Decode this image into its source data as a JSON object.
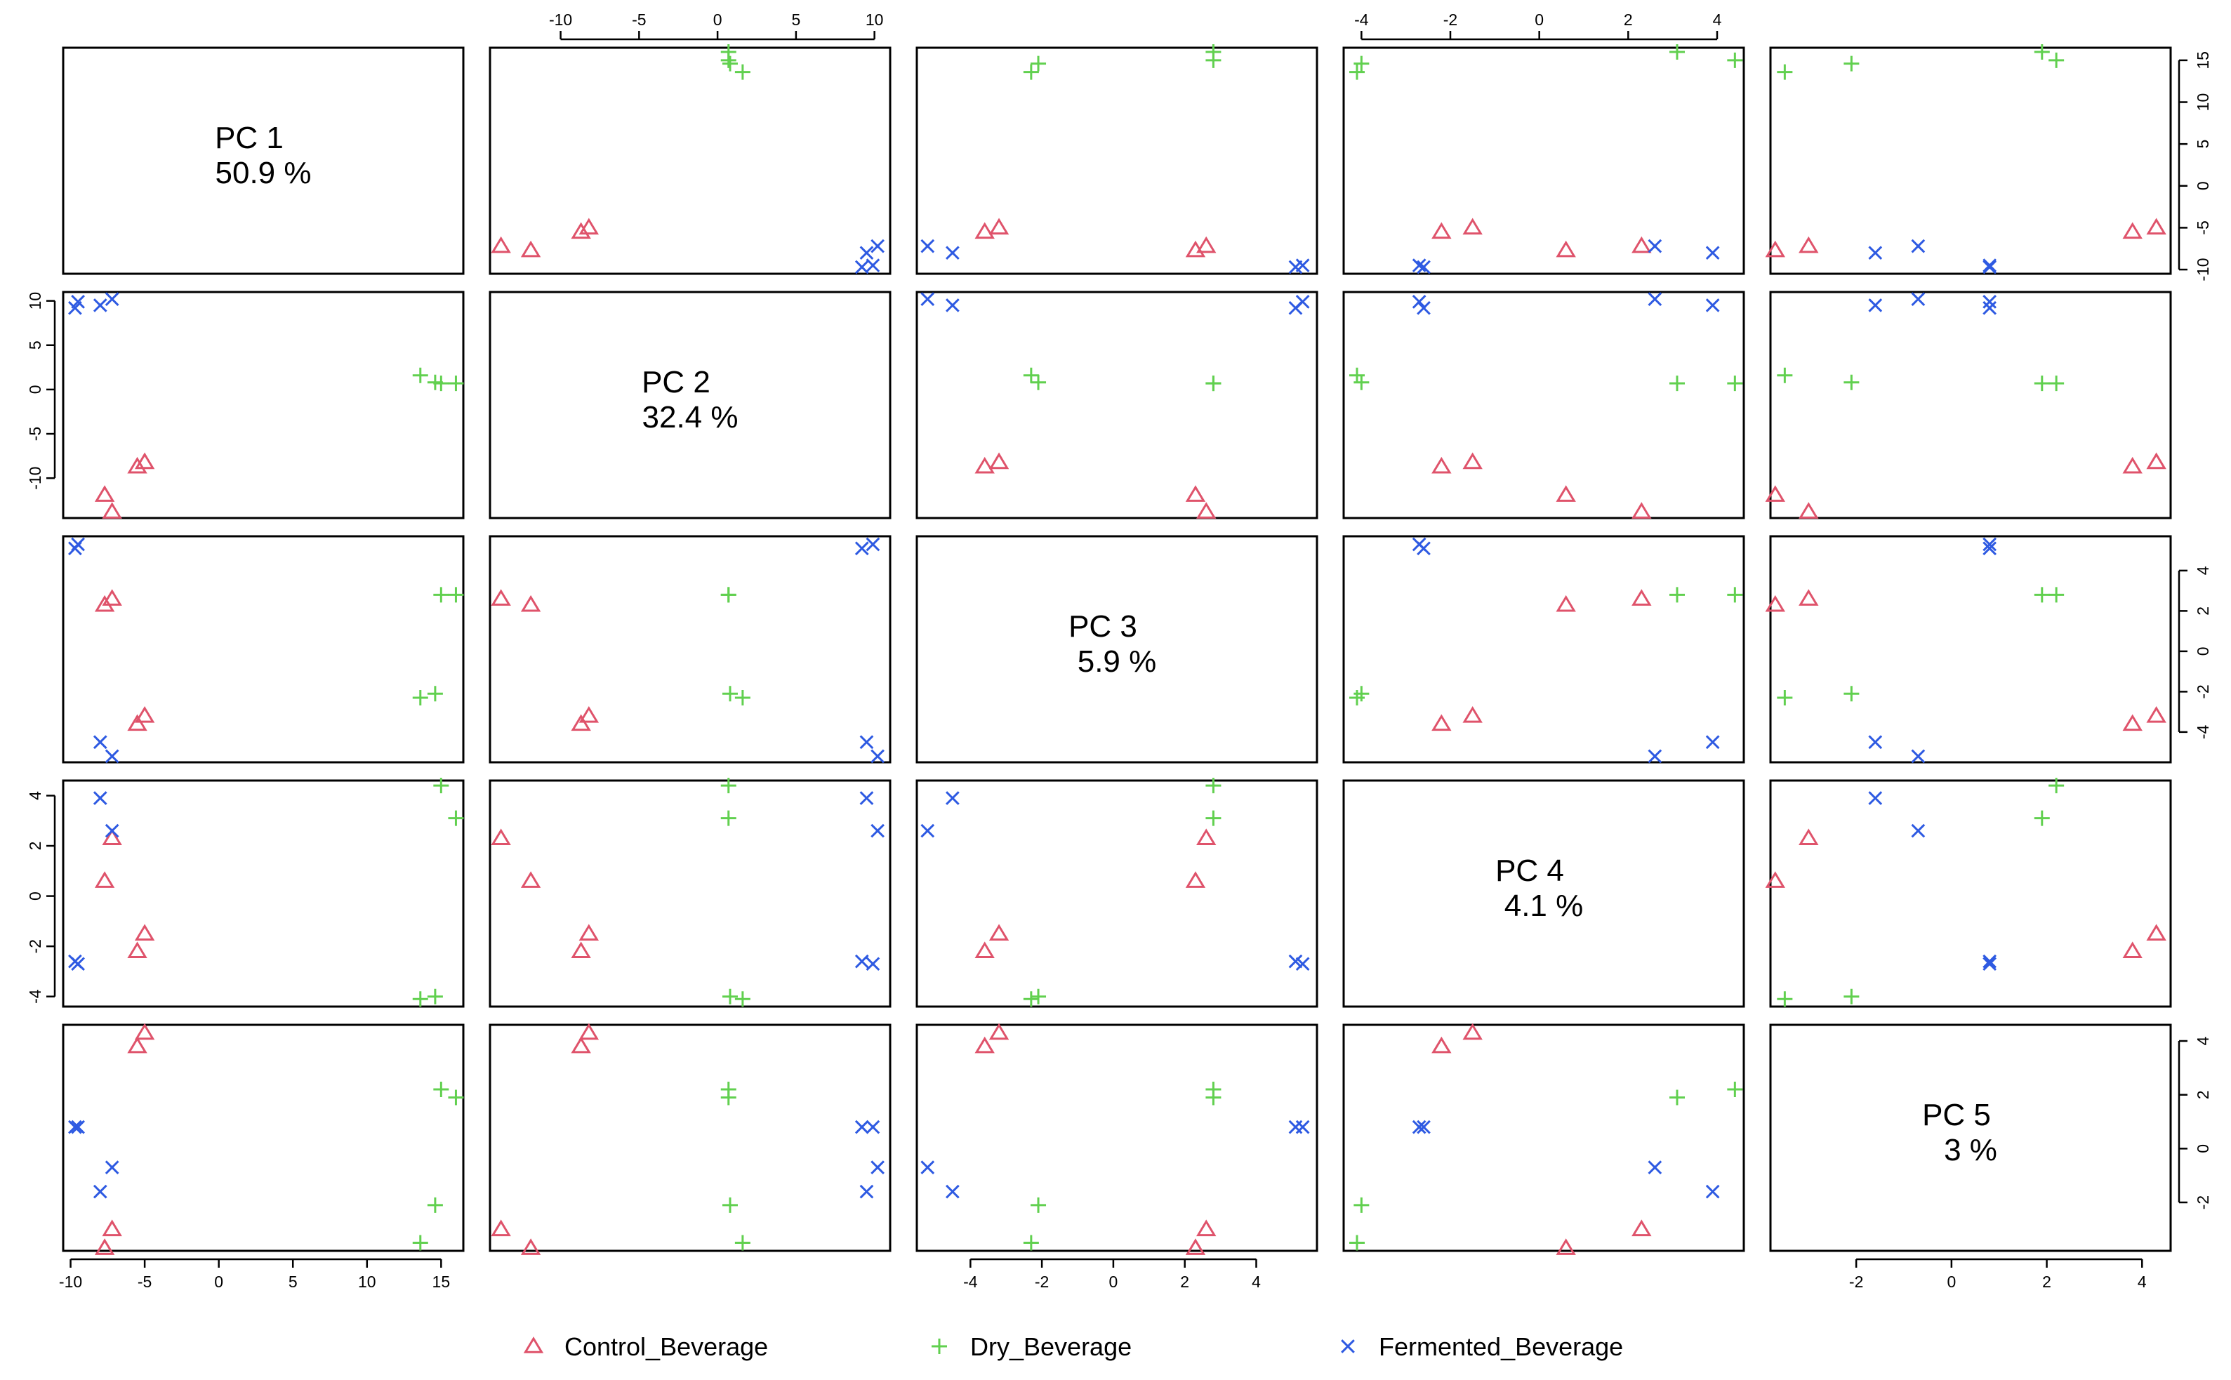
{
  "chart_data": {
    "type": "scatter",
    "subtype": "pairs-plot",
    "title": "",
    "variables": [
      {
        "name": "PC 1",
        "variance": "50.9 %",
        "range": [
          -10.5,
          16.5
        ],
        "ticks": [
          -10,
          -5,
          0,
          5,
          10,
          15
        ]
      },
      {
        "name": "PC 2",
        "variance": "32.4 %",
        "range": [
          -14.5,
          11
        ],
        "ticks": [
          -10,
          -5,
          0,
          5,
          10
        ]
      },
      {
        "name": "PC 3",
        "variance": "5.9 %",
        "range": [
          -5.5,
          5.7
        ],
        "ticks": [
          -4,
          -2,
          0,
          2,
          4
        ]
      },
      {
        "name": "PC 4",
        "variance": "4.1 %",
        "range": [
          -4.4,
          4.6
        ],
        "ticks": [
          -4,
          -2,
          0,
          2,
          4
        ]
      },
      {
        "name": "PC 5",
        "variance": "3 %",
        "range": [
          -3.8,
          4.6
        ],
        "ticks": [
          -2,
          0,
          2,
          4
        ]
      }
    ],
    "groups": [
      {
        "name": "Control_Beverage",
        "color": "#DF536B",
        "marker": "triangle",
        "points": [
          [
            -5,
            -8.2,
            -3.2,
            -1.5,
            4.3
          ],
          [
            -5.5,
            -8.7,
            -3.6,
            -2.2,
            3.8
          ],
          [
            -7.7,
            -11.9,
            2.3,
            0.6,
            -3.7
          ],
          [
            -7.2,
            -13.8,
            2.6,
            2.3,
            -3
          ]
        ]
      },
      {
        "name": "Dry_Beverage",
        "color": "#61D04F",
        "marker": "plus",
        "points": [
          [
            14.6,
            0.8,
            -2.1,
            -4,
            -2.1
          ],
          [
            13.6,
            1.6,
            -2.3,
            -4.1,
            -3.5
          ],
          [
            15,
            0.7,
            2.8,
            4.4,
            2.2
          ],
          [
            16,
            0.7,
            2.8,
            3.1,
            1.9
          ]
        ]
      },
      {
        "name": "Fermented_Beverage",
        "color": "#2E5AE2",
        "marker": "cross",
        "points": [
          [
            -9.7,
            9.2,
            5.1,
            -2.6,
            0.8
          ],
          [
            -9.5,
            9.9,
            5.3,
            -2.7,
            0.8
          ],
          [
            -8,
            9.5,
            -4.5,
            3.9,
            -1.6
          ],
          [
            -7.2,
            10.2,
            -5.2,
            2.6,
            -0.7
          ]
        ]
      }
    ],
    "legend_position": "bottom-center",
    "legend": [
      "Control_Beverage",
      "Dry_Beverage",
      "Fermented_Beverage"
    ],
    "grid": false
  }
}
